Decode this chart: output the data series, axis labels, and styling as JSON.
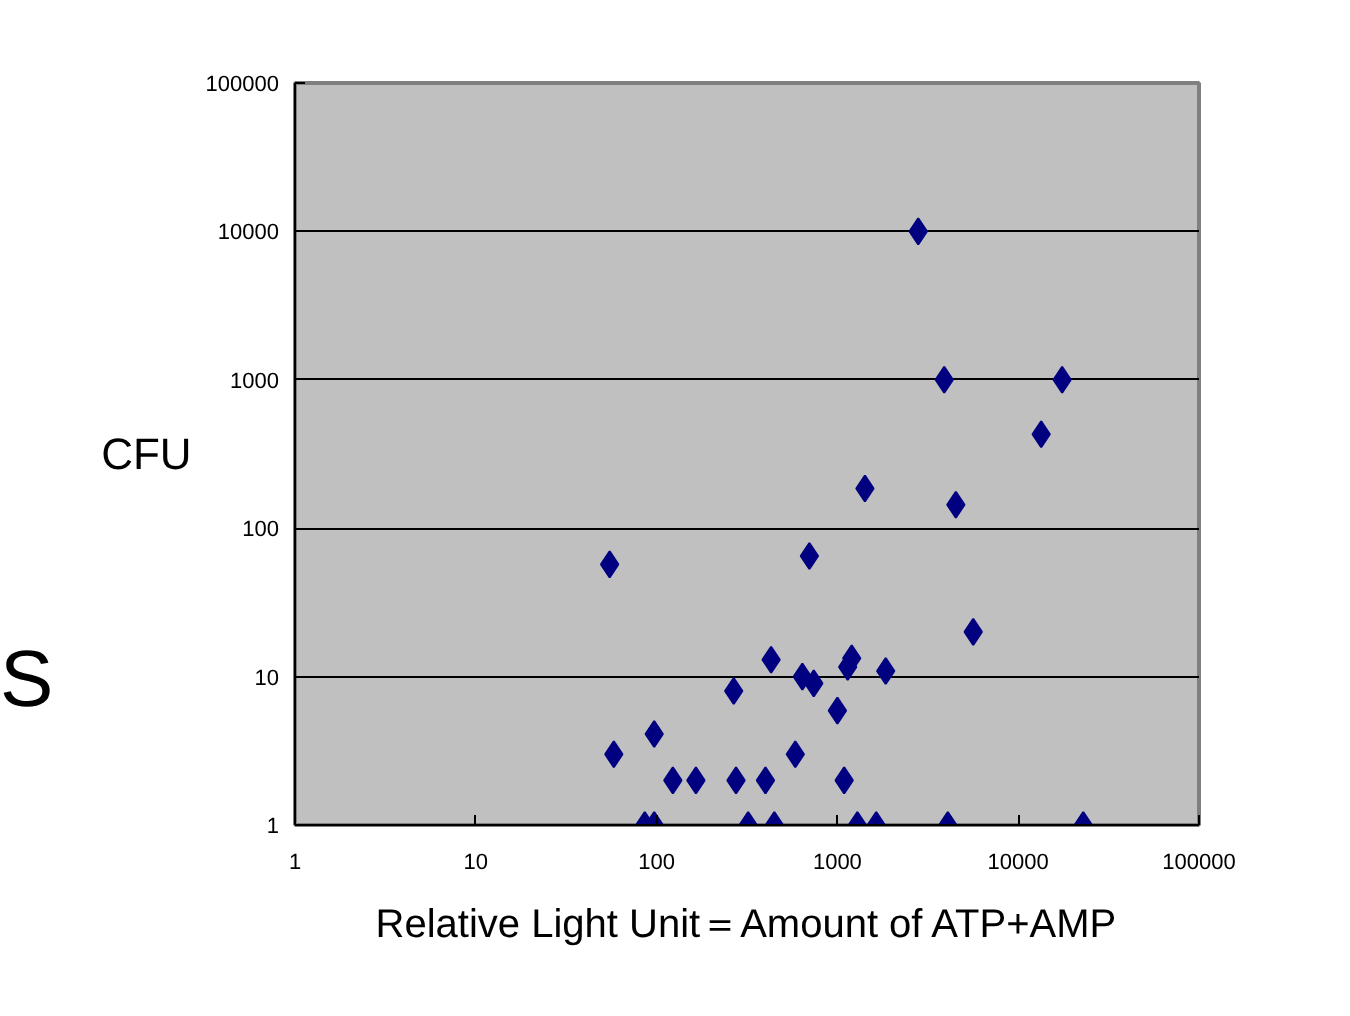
{
  "chart_data": {
    "type": "scatter",
    "xlabel": "Relative Light Unit＝Amount of ATP+AMP",
    "ylabel": "CFU",
    "annotations": [
      "S"
    ],
    "log": "xy",
    "grid": "y",
    "marker": "diamond",
    "xlim": [
      1,
      100000
    ],
    "ylim": [
      1,
      100000
    ],
    "xticks": [
      1,
      10,
      100,
      1000,
      10000,
      100000
    ],
    "yticks": [
      1,
      10,
      100,
      1000,
      10000,
      100000
    ],
    "series": [
      {
        "color": "#000080",
        "x": [
          2800,
          3900,
          17500,
          13400,
          1420,
          4520,
          55,
          700,
          5640,
          430,
          1200,
          1140,
          1850,
          640,
          740,
          267,
          1000,
          97,
          58,
          585,
          123,
          165,
          275,
          400,
          1090,
          86,
          97,
          321,
          448,
          1290,
          1640,
          4080,
          22900
        ],
        "values": [
          10000,
          1000,
          1000,
          430,
          185,
          144,
          57,
          65,
          20,
          13,
          13.3,
          11.6,
          10.9,
          10,
          9,
          8,
          5.9,
          4.1,
          3,
          3,
          2,
          2,
          2,
          2,
          2,
          1,
          1,
          1,
          1,
          1,
          1,
          1,
          1
        ]
      }
    ]
  }
}
